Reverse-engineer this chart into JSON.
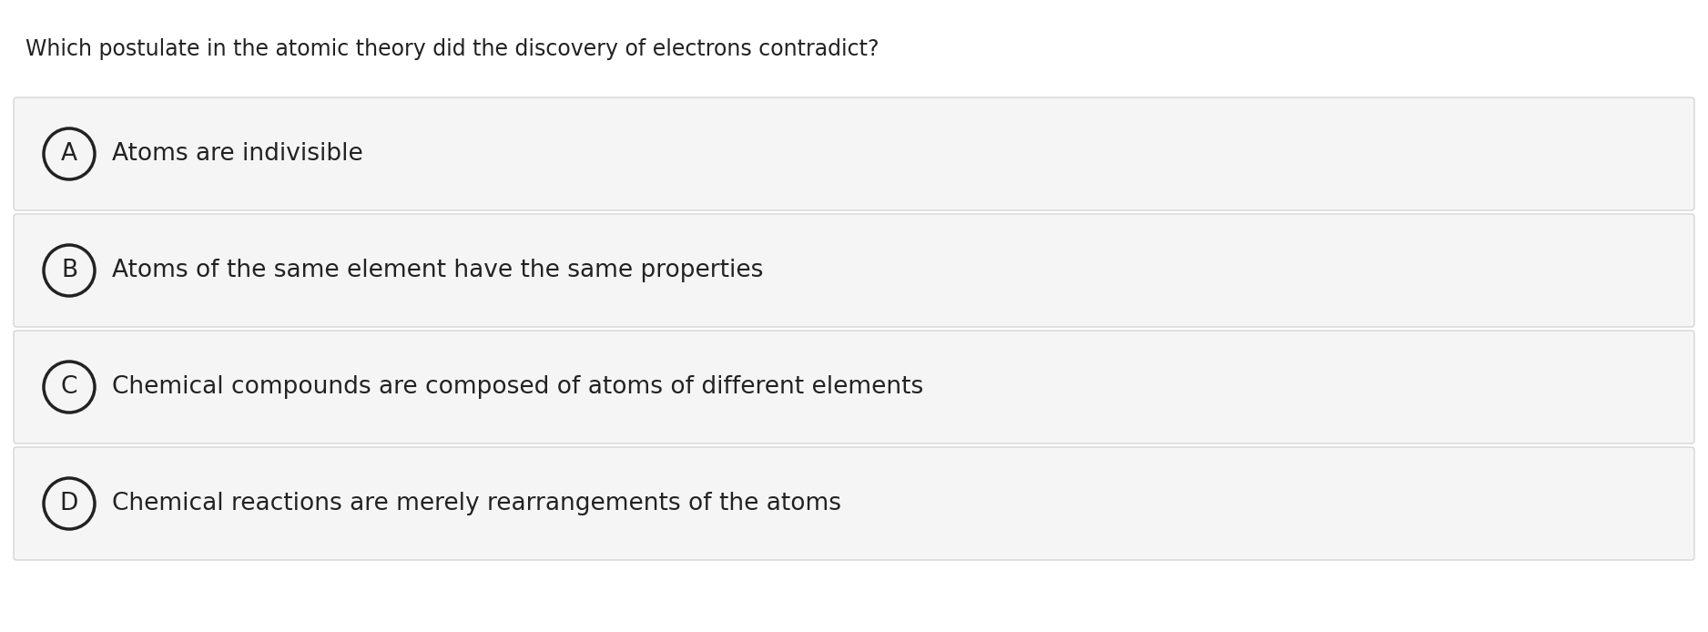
{
  "question": "Which postulate in the atomic theory did the discovery of electrons contradict?",
  "options": [
    {
      "label": "A",
      "text": "Atoms are indivisible"
    },
    {
      "label": "B",
      "text": "Atoms of the same element have the same properties"
    },
    {
      "label": "C",
      "text": "Chemical compounds are composed of atoms of different elements"
    },
    {
      "label": "D",
      "text": "Chemical reactions are merely rearrangements of the atoms"
    }
  ],
  "bg_color": "#ffffff",
  "option_bg_color": "#f5f5f5",
  "option_border_color": "#cccccc",
  "text_color": "#222222",
  "question_fontsize": 17,
  "option_fontsize": 19,
  "circle_lw": 2.5
}
